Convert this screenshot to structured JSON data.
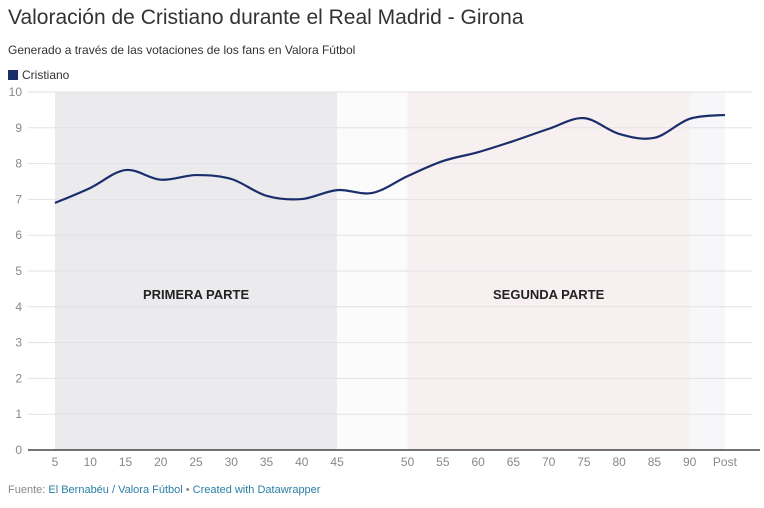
{
  "title": "Valoración de Cristiano durante el Real Madrid - Girona",
  "subtitle": "Generado a través de las votaciones de los fans en Valora Fútbol",
  "footer": {
    "label": "Fuente:",
    "source": "El Bernabéu / Valora Fútbol",
    "sep": " • ",
    "credit": "Created with Datawrapper"
  },
  "chart_data": {
    "type": "line",
    "categories": [
      "5",
      "10",
      "15",
      "20",
      "25",
      "30",
      "35",
      "40",
      "45",
      "",
      "50",
      "55",
      "60",
      "65",
      "70",
      "75",
      "80",
      "85",
      "90",
      "Post"
    ],
    "series": [
      {
        "name": "Cristiano",
        "color": "#1a2e6c",
        "values": [
          6.9,
          7.32,
          7.82,
          7.55,
          7.68,
          7.57,
          7.1,
          7.01,
          7.26,
          7.18,
          7.65,
          8.07,
          8.32,
          8.63,
          8.97,
          9.27,
          8.83,
          8.72,
          9.25,
          9.36
        ]
      }
    ],
    "ylim": [
      0,
      10
    ],
    "yticks": [
      0,
      1,
      2,
      3,
      4,
      5,
      6,
      7,
      8,
      9,
      10
    ],
    "grid": true,
    "legend": "top-left",
    "annotations": [
      {
        "text": "PRIMERA PARTE",
        "from": "5",
        "to": "45",
        "color": "#ebebee"
      },
      {
        "text": "SEGUNDA PARTE",
        "from": "50",
        "to": "90",
        "color": "#f8eff1"
      }
    ]
  }
}
